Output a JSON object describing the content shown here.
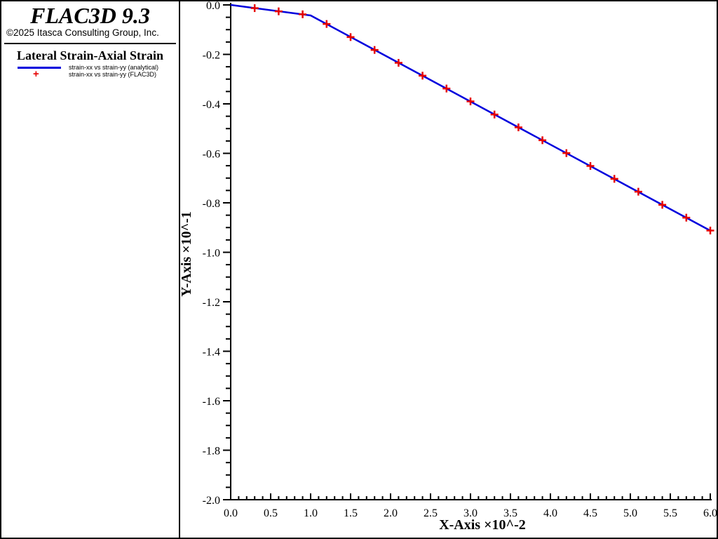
{
  "header": {
    "app_title": "FLAC3D 9.3",
    "copyright": "©2025 Itasca Consulting Group, Inc.",
    "chart_title": "Lateral Strain-Axial Strain",
    "legend": [
      {
        "label": "strain-xx vs strain-yy (analytical)",
        "marker": "line",
        "color": "#0000dd"
      },
      {
        "label": "strain-xx vs strain-yy (FLAC3D)",
        "marker": "plus",
        "color": "#e60000"
      }
    ]
  },
  "colors": {
    "analytical_line": "#0000dd",
    "flac3d_marker": "#e60000",
    "axis": "#000000",
    "background": "#ffffff"
  },
  "chart_data": {
    "type": "line",
    "title": "Lateral Strain-Axial Strain",
    "xlabel": "X-Axis ×10^-2",
    "ylabel": "Y-Axis ×10^-1",
    "xlim": [
      0.0,
      6.0
    ],
    "ylim": [
      -2.0,
      0.0
    ],
    "x_major_step": 0.5,
    "x_minor_step": 0.1,
    "y_major_step": 0.2,
    "y_minor_step": 0.05,
    "grid": false,
    "legend_position": "left-panel",
    "series": [
      {
        "name": "strain-xx vs strain-yy (analytical)",
        "type": "line",
        "color": "#0000dd",
        "x": [
          0.0,
          1.0,
          6.0
        ],
        "y": [
          0.0,
          -0.0425,
          -0.9125
        ]
      },
      {
        "name": "strain-xx vs strain-yy (FLAC3D)",
        "type": "scatter",
        "marker": "plus",
        "color": "#e60000",
        "x": [
          0.3,
          0.6,
          0.9,
          1.2,
          1.5,
          1.8,
          2.1,
          2.4,
          2.7,
          3.0,
          3.3,
          3.6,
          3.9,
          4.2,
          4.5,
          4.8,
          5.1,
          5.4,
          5.7,
          6.0
        ],
        "y": [
          -0.013,
          -0.026,
          -0.038,
          -0.077,
          -0.13,
          -0.182,
          -0.234,
          -0.286,
          -0.338,
          -0.39,
          -0.443,
          -0.495,
          -0.547,
          -0.599,
          -0.651,
          -0.703,
          -0.755,
          -0.808,
          -0.86,
          -0.912
        ]
      }
    ]
  }
}
